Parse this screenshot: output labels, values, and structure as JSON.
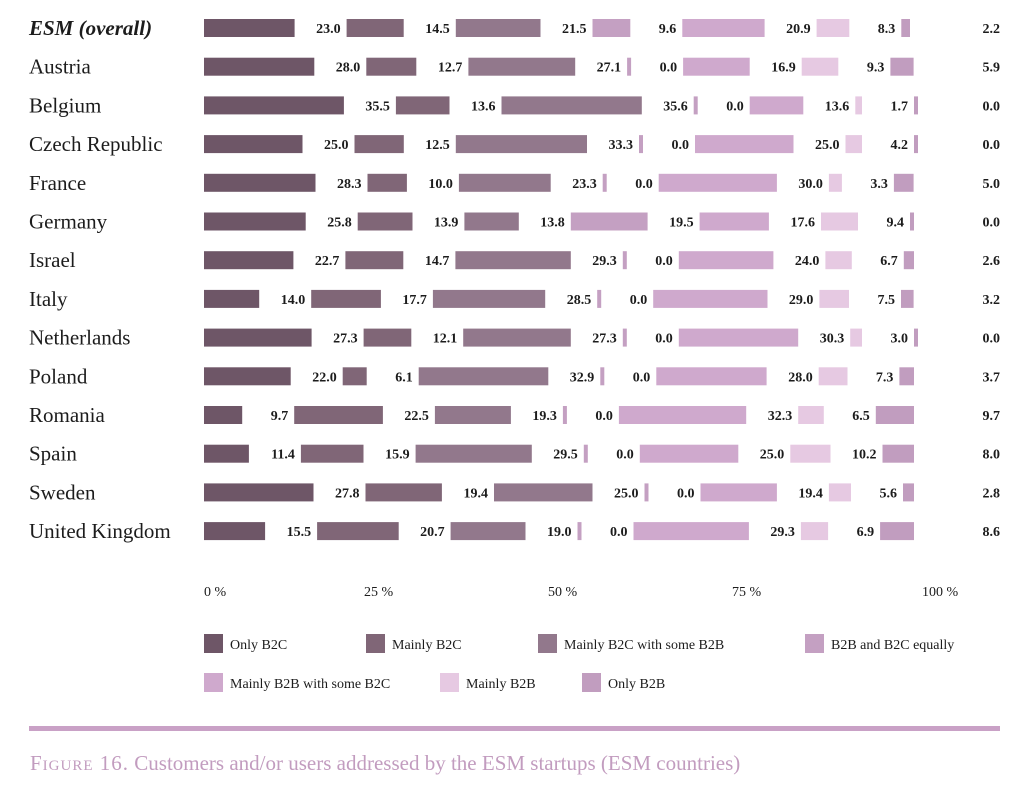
{
  "caption": {
    "prefix": "Figure 16.",
    "text": "Customers and/or users addressed by the ESM startups (ESM countries)"
  },
  "chart_data": {
    "type": "bar",
    "orientation": "horizontal",
    "stacked": true,
    "xlim": [
      0,
      100
    ],
    "x_ticks": [
      "0 %",
      "25 %",
      "50 %",
      "75 %",
      "100 %"
    ],
    "legend_position": "bottom",
    "categories": [
      "ESM (overall)",
      "Austria",
      "Belgium",
      "Czech Republic",
      "France",
      "Germany",
      "Israel",
      "Italy",
      "Netherlands",
      "Poland",
      "Romania",
      "Spain",
      "Sweden",
      "United Kingdom"
    ],
    "series": [
      {
        "name": "Only B2C",
        "color": "#6e5667",
        "values": [
          23.0,
          28.0,
          35.5,
          25.0,
          28.3,
          25.8,
          22.7,
          14.0,
          27.3,
          22.0,
          9.7,
          11.4,
          27.8,
          15.5
        ]
      },
      {
        "name": "Mainly B2C",
        "color": "#806677",
        "values": [
          14.5,
          12.7,
          13.6,
          12.5,
          10.0,
          13.9,
          14.7,
          17.7,
          12.1,
          6.1,
          22.5,
          15.9,
          19.4,
          20.7
        ]
      },
      {
        "name": "Mainly B2C with some B2B",
        "color": "#92788c",
        "values": [
          21.5,
          27.1,
          35.6,
          33.3,
          23.3,
          13.8,
          29.3,
          28.5,
          27.3,
          32.9,
          19.3,
          29.5,
          25.0,
          19.0
        ]
      },
      {
        "name": "B2B and B2C equally",
        "color": "#c4a0c2",
        "values": [
          9.6,
          0.0,
          0.0,
          0.0,
          0.0,
          19.5,
          0.0,
          0.0,
          0.0,
          0.0,
          0.0,
          0.0,
          0.0,
          0.0
        ]
      },
      {
        "name": "Mainly B2B with some B2C",
        "color": "#cfa9cd",
        "values": [
          20.9,
          16.9,
          13.6,
          25.0,
          30.0,
          17.6,
          24.0,
          29.0,
          30.3,
          28.0,
          32.3,
          25.0,
          19.4,
          29.3
        ]
      },
      {
        "name": "Mainly B2B",
        "color": "#e6c9e2",
        "values": [
          8.3,
          9.3,
          1.7,
          4.2,
          3.3,
          9.4,
          6.7,
          7.5,
          3.0,
          7.3,
          6.5,
          10.2,
          5.6,
          6.9
        ]
      },
      {
        "name": "Only B2B",
        "color": "#c19dbf",
        "values": [
          2.2,
          5.9,
          0.0,
          0.0,
          5.0,
          0.0,
          2.6,
          3.2,
          0.0,
          3.7,
          9.7,
          8.0,
          2.8,
          8.6
        ]
      }
    ]
  }
}
